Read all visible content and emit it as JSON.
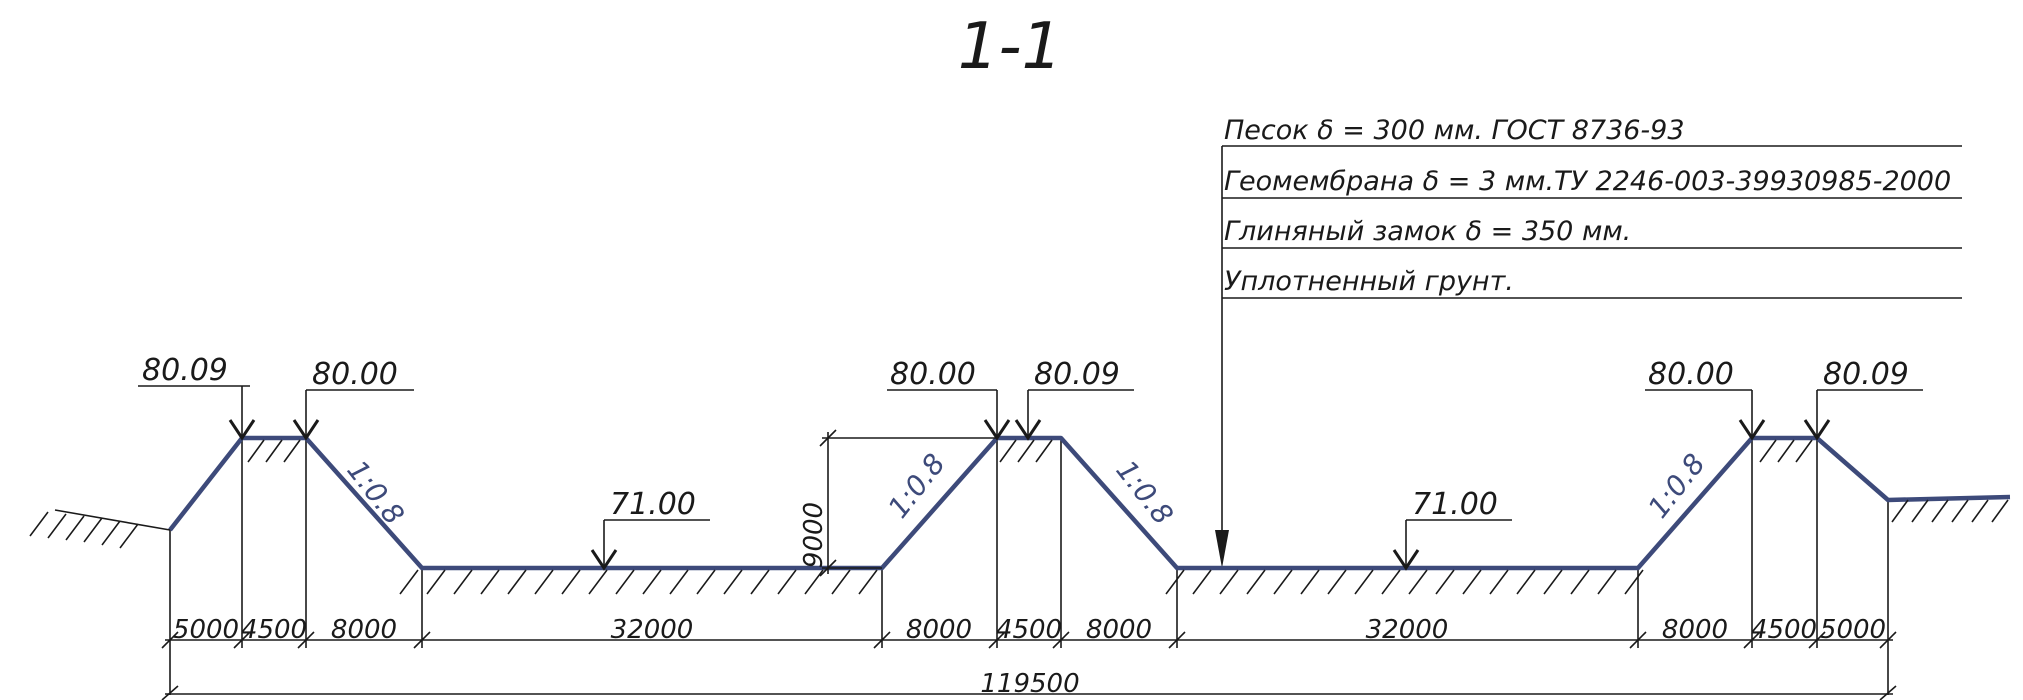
{
  "drawing": {
    "section_title": "1-1",
    "layers": [
      "Песок δ = 300 мм. ГОСТ 8736-93",
      "Геомембрана δ = 3 мм.ТУ 2246-003-39930985-2000",
      "Глиняный замок δ = 350 мм.",
      "Уплотненный грунт."
    ],
    "elevations": {
      "left_outer": "80.09",
      "left_inner": "80.00",
      "pond1_bottom": "71.00",
      "mid_left": "80.00",
      "mid_right": "80.09",
      "pond2_bottom": "71.00",
      "right_inner": "80.00",
      "right_outer": "80.09"
    },
    "slopes": {
      "s1": "1:0.8",
      "s2": "1:0.8",
      "s3": "1:0.8",
      "s4": "1:0.8"
    },
    "depth_dimension": "9000",
    "dimensions": [
      "5000",
      "4500",
      "8000",
      "32000",
      "8000",
      "4500",
      "8000",
      "32000",
      "8000",
      "4500",
      "5000"
    ],
    "total_dimension": "119500"
  }
}
